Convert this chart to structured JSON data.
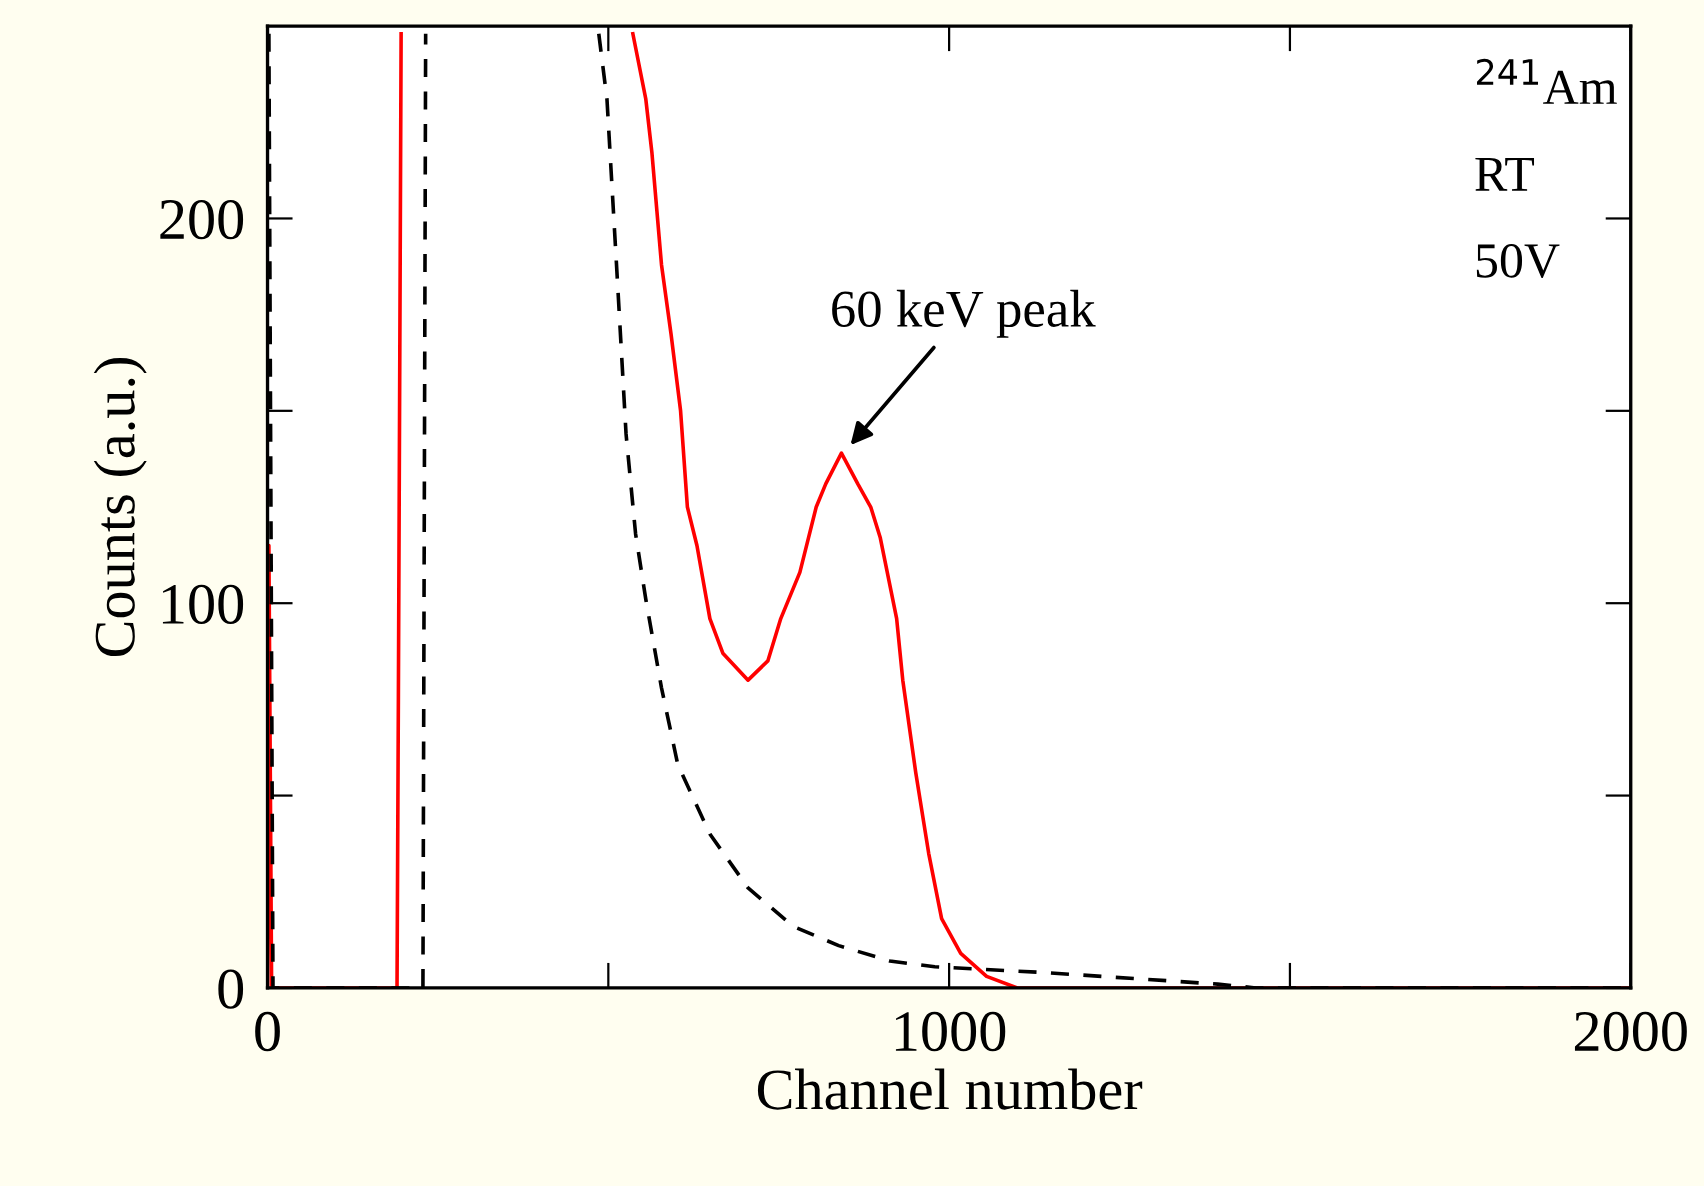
{
  "chart_data": {
    "type": "line",
    "xlabel": "Channel number",
    "ylabel": "Counts (a.u.)",
    "xlim": [
      0,
      2000
    ],
    "ylim": [
      0,
      250
    ],
    "xticks": [
      0,
      {
        "value": 500,
        "label": null
      },
      1000,
      {
        "value": 1500,
        "label": null
      },
      2000
    ],
    "yticks": [
      0,
      {
        "value": 50,
        "label": null
      },
      100,
      {
        "value": 150,
        "label": null
      },
      200
    ],
    "grid": false,
    "legend": false,
    "marker": "none",
    "series": [
      {
        "color": "#ff0000",
        "line_style": "solid",
        "x": [
          0,
          2,
          6,
          190,
          192,
          196,
          198,
          536,
          555,
          564,
          578,
          592,
          606,
          616,
          630,
          649,
          668,
          705,
          734,
          753,
          781,
          805,
          819,
          842,
          866,
          885,
          899,
          923,
          932,
          951,
          970,
          989,
          1017,
          1055,
          1100,
          2000
        ],
        "values": [
          0,
          115,
          0,
          0,
          76,
          248,
          null,
          248,
          231,
          217,
          188,
          170,
          150,
          125,
          115,
          96,
          87,
          80,
          85,
          96,
          108,
          125,
          131,
          139,
          131,
          125,
          117,
          96,
          80,
          56,
          35,
          18,
          9,
          3,
          0,
          0
        ]
      },
      {
        "color": "#000000",
        "line_style": "dashed",
        "x": [
          2,
          8,
          228,
          232,
          234,
          486,
          498,
          512,
          526,
          540,
          555,
          578,
          602,
          649,
          705,
          771,
          838,
          913,
          979,
          1139,
          1394,
          1450,
          2000
        ],
        "values": [
          248,
          0,
          0,
          248,
          null,
          248,
          231,
          188,
          144,
          118,
          101,
          78,
          58,
          40,
          26,
          16,
          11,
          7,
          5.5,
          4,
          1,
          0,
          0
        ]
      }
    ],
    "annotations": [
      {
        "text": "60 keV peak",
        "x": 850,
        "y": 140
      },
      "$^{241}$Am",
      "RT",
      "50V"
    ]
  }
}
